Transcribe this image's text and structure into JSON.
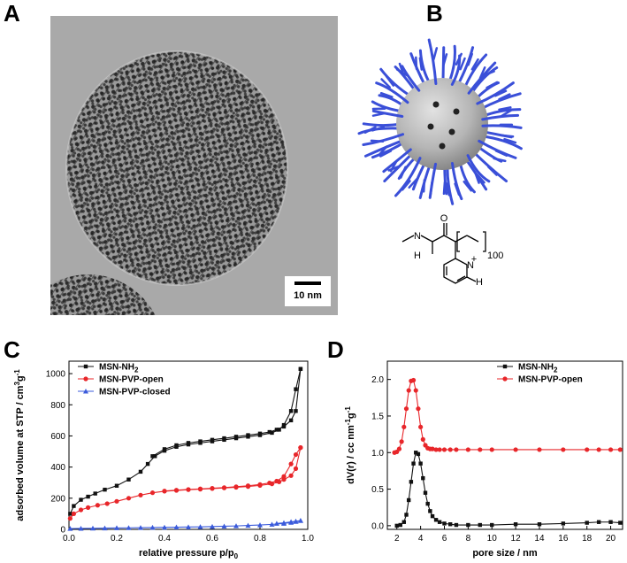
{
  "panels": {
    "a": "A",
    "b": "B",
    "c": "C",
    "d": "D"
  },
  "tem": {
    "scale_bar": "10 nm"
  },
  "structure": {
    "atom_o": "O",
    "atom_n1": "N",
    "atom_h1": "H",
    "atom_n2": "N",
    "atom_h2": "H",
    "charge": "+",
    "repeat": "100"
  },
  "colors": {
    "black_series": "#111111",
    "red_series": "#e8262a",
    "blue_series": "#3b5bdb",
    "polymer": "#3a4fd8",
    "core": "#b9b9b9"
  },
  "chart_data": [
    {
      "type": "line",
      "panel": "C",
      "xlabel": "relative pressure p/p0",
      "ylabel": "adsorbed volume at STP / cm3g-1",
      "xlim": [
        0,
        1.0
      ],
      "ylim": [
        0,
        1080
      ],
      "xticks": [
        "0.0",
        "0.2",
        "0.4",
        "0.6",
        "0.8",
        "1.0"
      ],
      "yticks": [
        "0",
        "200",
        "400",
        "600",
        "800",
        "1000"
      ],
      "legend_position": "top-left",
      "series": [
        {
          "name": "MSN-NH2",
          "color": "#111111",
          "marker": "square",
          "adsorption": {
            "x": [
              0.005,
              0.02,
              0.05,
              0.08,
              0.11,
              0.15,
              0.2,
              0.25,
              0.3,
              0.33,
              0.36,
              0.4,
              0.45,
              0.5,
              0.55,
              0.6,
              0.65,
              0.7,
              0.75,
              0.8,
              0.85,
              0.88,
              0.9,
              0.93,
              0.95,
              0.97
            ],
            "y": [
              100,
              150,
              190,
              210,
              230,
              255,
              280,
              320,
              370,
              420,
              470,
              505,
              530,
              545,
              555,
              565,
              575,
              585,
              595,
              605,
              620,
              640,
              670,
              760,
              900,
              1030
            ]
          },
          "desorption": {
            "x": [
              0.97,
              0.95,
              0.93,
              0.9,
              0.87,
              0.84,
              0.8,
              0.75,
              0.7,
              0.65,
              0.6,
              0.55,
              0.5,
              0.45,
              0.4,
              0.35
            ],
            "y": [
              1030,
              760,
              700,
              660,
              640,
              625,
              615,
              605,
              595,
              585,
              575,
              565,
              555,
              540,
              515,
              470
            ]
          }
        },
        {
          "name": "MSN-PVP-open",
          "color": "#e8262a",
          "marker": "circle",
          "adsorption": {
            "x": [
              0.005,
              0.02,
              0.05,
              0.08,
              0.12,
              0.16,
              0.2,
              0.25,
              0.3,
              0.35,
              0.4,
              0.45,
              0.5,
              0.55,
              0.6,
              0.65,
              0.7,
              0.75,
              0.8,
              0.85,
              0.88,
              0.9,
              0.93,
              0.95,
              0.97
            ],
            "y": [
              70,
              100,
              125,
              140,
              155,
              165,
              180,
              200,
              220,
              235,
              245,
              250,
              255,
              258,
              262,
              266,
              270,
              275,
              282,
              292,
              305,
              320,
              345,
              390,
              525
            ]
          },
          "desorption": {
            "x": [
              0.97,
              0.95,
              0.93,
              0.9,
              0.87,
              0.84,
              0.8,
              0.75,
              0.7,
              0.65,
              0.6,
              0.55,
              0.5,
              0.45,
              0.4
            ],
            "y": [
              525,
              480,
              420,
              340,
              310,
              298,
              288,
              280,
              274,
              268,
              264,
              260,
              256,
              252,
              246
            ]
          }
        },
        {
          "name": "MSN-PVP-closed",
          "color": "#3b5bdb",
          "marker": "triangle",
          "adsorption": {
            "x": [
              0.005,
              0.05,
              0.1,
              0.15,
              0.2,
              0.25,
              0.3,
              0.35,
              0.4,
              0.45,
              0.5,
              0.55,
              0.6,
              0.65,
              0.7,
              0.75,
              0.8,
              0.85,
              0.9,
              0.93,
              0.95,
              0.97
            ],
            "y": [
              5,
              6,
              7,
              8,
              9,
              10,
              11,
              12,
              13,
              14,
              15,
              16,
              18,
              20,
              22,
              25,
              28,
              32,
              38,
              44,
              50,
              56
            ]
          },
          "desorption": {
            "x": [
              0.97,
              0.95,
              0.93,
              0.9,
              0.87
            ],
            "y": [
              56,
              52,
              48,
              42,
              38
            ]
          }
        }
      ]
    },
    {
      "type": "line",
      "panel": "D",
      "xlabel": "pore size / nm",
      "ylabel": "dV(r) / cc nm-1g-1",
      "xlim": [
        1.2,
        21
      ],
      "ylim": [
        -0.05,
        2.25
      ],
      "xticks": [
        "2",
        "4",
        "6",
        "8",
        "10",
        "12",
        "14",
        "16",
        "18",
        "20"
      ],
      "yticks": [
        "0.0",
        "0.5",
        "1.0",
        "1.5",
        "2.0"
      ],
      "legend_position": "top-right",
      "series": [
        {
          "name": "MSN-NH2",
          "color": "#111111",
          "marker": "square",
          "x": [
            2.0,
            2.3,
            2.6,
            2.8,
            3.0,
            3.2,
            3.4,
            3.6,
            3.8,
            4.0,
            4.2,
            4.4,
            4.6,
            4.8,
            5.0,
            5.3,
            5.6,
            6.0,
            6.5,
            7.0,
            8.0,
            9.0,
            10.0,
            12.0,
            14.0,
            16.0,
            18.0,
            19.0,
            20.0,
            20.8
          ],
          "y": [
            0.0,
            0.01,
            0.05,
            0.15,
            0.35,
            0.6,
            0.85,
            1.0,
            0.98,
            0.85,
            0.65,
            0.45,
            0.3,
            0.2,
            0.13,
            0.08,
            0.05,
            0.03,
            0.02,
            0.01,
            0.01,
            0.01,
            0.01,
            0.02,
            0.02,
            0.03,
            0.04,
            0.05,
            0.05,
            0.04
          ]
        },
        {
          "name": "MSN-PVP-open",
          "color": "#e8262a",
          "marker": "circle",
          "x": [
            1.8,
            2.0,
            2.2,
            2.4,
            2.6,
            2.8,
            3.0,
            3.2,
            3.4,
            3.6,
            3.8,
            4.0,
            4.2,
            4.4,
            4.6,
            4.8,
            5.0,
            5.3,
            5.6,
            6.0,
            6.5,
            7.0,
            8.0,
            9.0,
            10.0,
            12.0,
            14.0,
            16.0,
            18.0,
            19.0,
            20.0,
            20.8
          ],
          "y": [
            1.0,
            1.01,
            1.05,
            1.15,
            1.35,
            1.6,
            1.85,
            1.98,
            1.99,
            1.85,
            1.6,
            1.35,
            1.18,
            1.1,
            1.06,
            1.05,
            1.05,
            1.04,
            1.04,
            1.04,
            1.04,
            1.04,
            1.04,
            1.04,
            1.04,
            1.04,
            1.04,
            1.04,
            1.04,
            1.04,
            1.04,
            1.04
          ]
        }
      ]
    }
  ]
}
